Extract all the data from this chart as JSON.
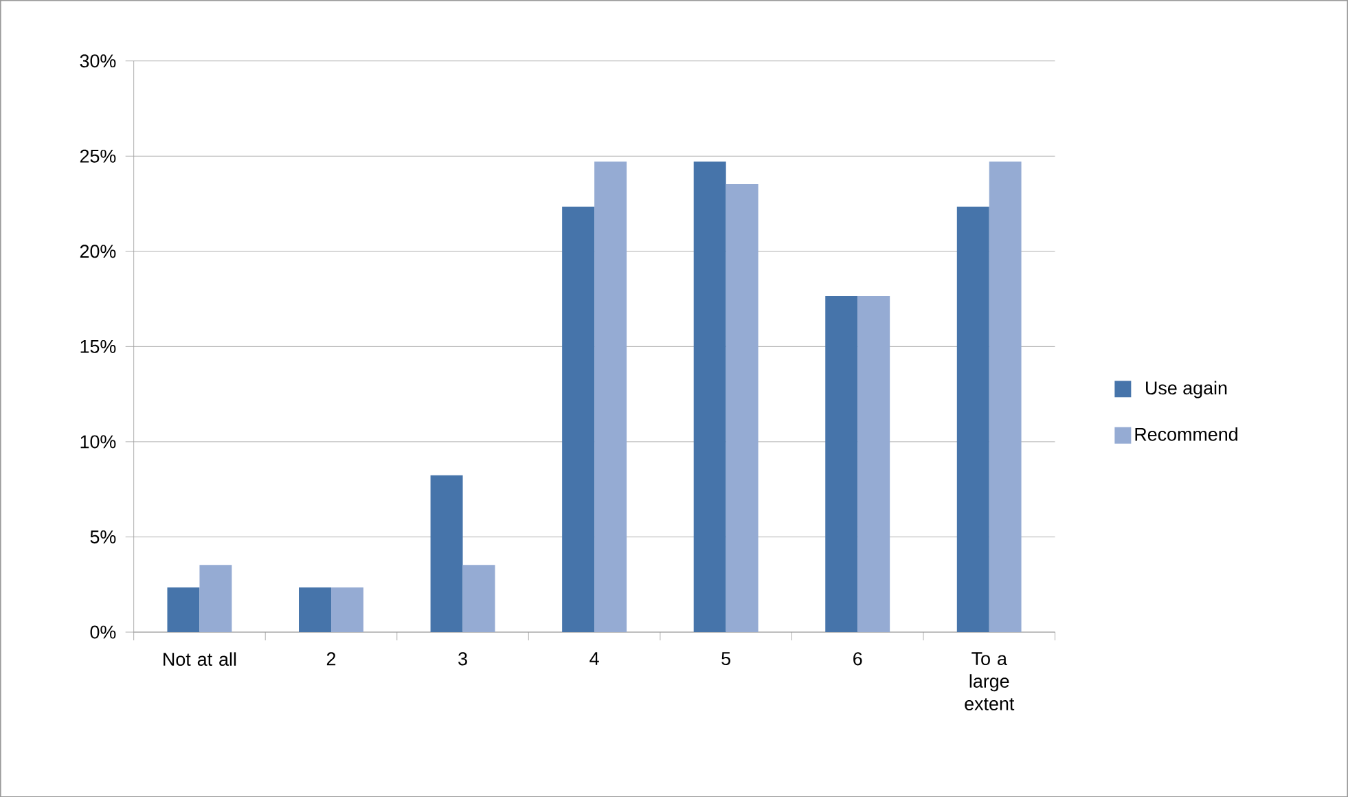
{
  "chart_data": {
    "type": "bar",
    "categories": [
      "Not at all",
      "2",
      "3",
      "4",
      "5",
      "6",
      "To a large extent"
    ],
    "series": [
      {
        "name": "Use again",
        "color": "#4674aa",
        "values": [
          2.35,
          2.35,
          8.24,
          22.35,
          24.71,
          17.65,
          22.35
        ]
      },
      {
        "name": "Recommend",
        "color": "#95abd3",
        "values": [
          3.53,
          2.35,
          3.53,
          24.71,
          23.53,
          17.65,
          24.71
        ]
      }
    ],
    "ylim": [
      0,
      30
    ],
    "yticks": [
      {
        "value": 0,
        "label": "0%"
      },
      {
        "value": 5,
        "label": "5%"
      },
      {
        "value": 10,
        "label": "10%"
      },
      {
        "value": 15,
        "label": "15%"
      },
      {
        "value": 20,
        "label": "20%"
      },
      {
        "value": 25,
        "label": "25%"
      },
      {
        "value": 30,
        "label": "30%"
      }
    ],
    "grid": "y",
    "legend": "right"
  }
}
